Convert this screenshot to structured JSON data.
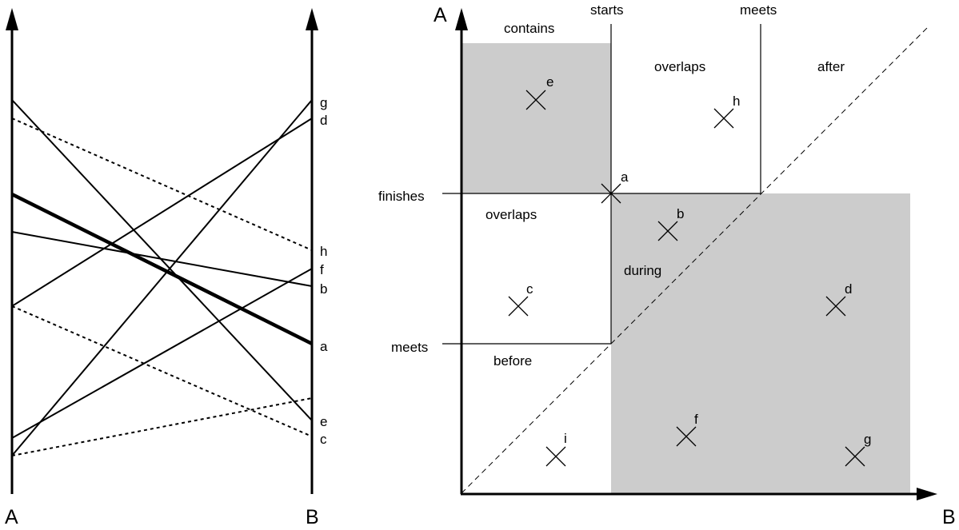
{
  "parallel_plot": {
    "axis_a_label": "A",
    "axis_b_label": "B",
    "line_labels": [
      "g",
      "d",
      "h",
      "f",
      "b",
      "a",
      "e",
      "c"
    ]
  },
  "interval_plot": {
    "axis_a_label": "A",
    "axis_b_label": "B",
    "row_labels": {
      "finishes": "finishes",
      "meets": "meets"
    },
    "column_labels": {
      "starts": "starts",
      "meets": "meets"
    },
    "regions": {
      "contains": "contains",
      "overlaps_top": "overlaps",
      "after": "after",
      "overlaps_left": "overlaps",
      "during": "during",
      "before": "before"
    },
    "points": [
      "e",
      "h",
      "a",
      "b",
      "c",
      "d",
      "f",
      "g",
      "i"
    ]
  },
  "colors": {
    "shade": "#cccccc",
    "ink": "#000000"
  }
}
